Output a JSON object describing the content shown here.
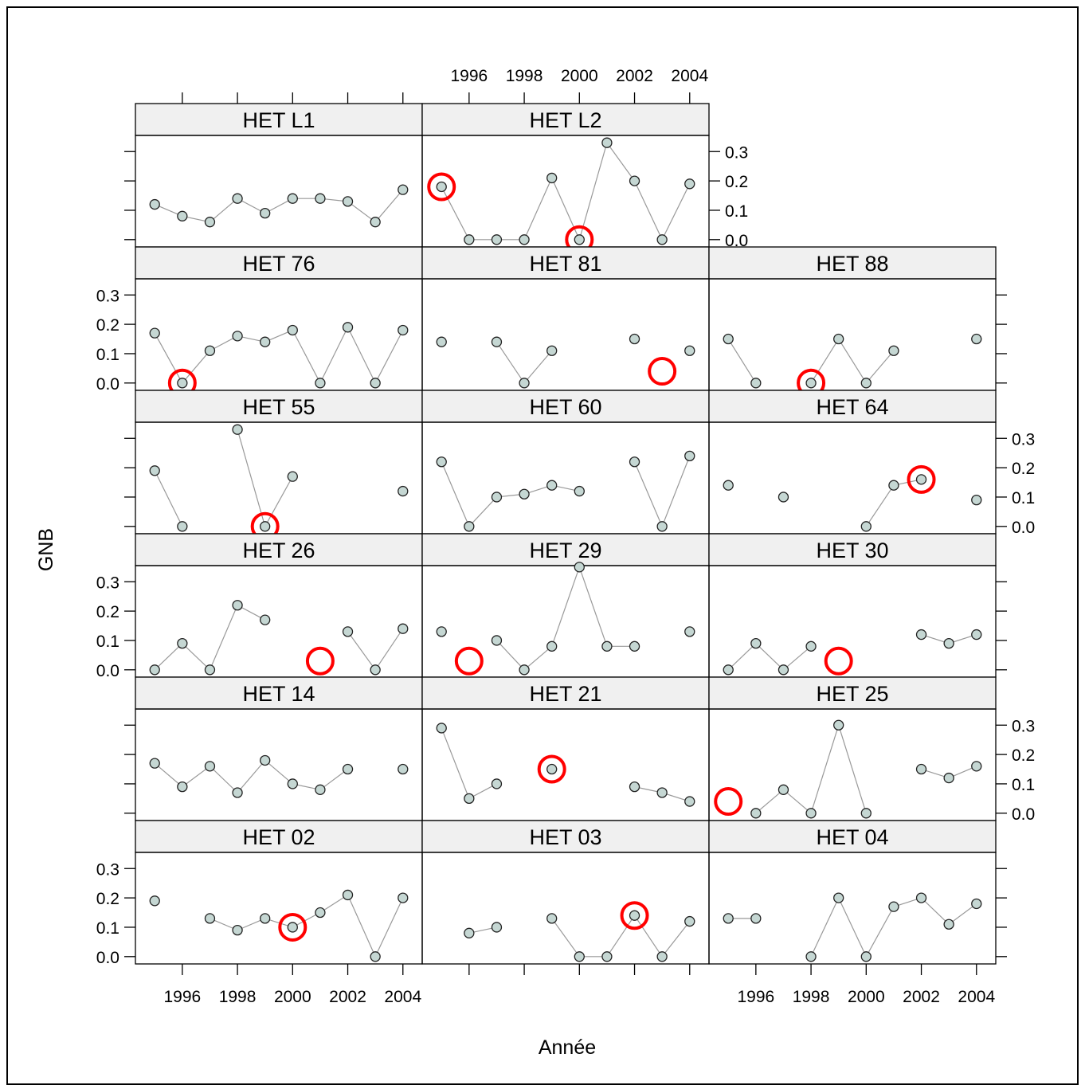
{
  "chart_data": {
    "type": "scatter",
    "xlabel": "Année",
    "ylabel": "GNB",
    "x_ticks": [
      1996,
      1998,
      2000,
      2002,
      2004
    ],
    "y_ticks": [
      "0.0",
      "0.1",
      "0.2",
      "0.3"
    ],
    "xlim": [
      1994.3,
      2004.7
    ],
    "ylim": [
      -0.025,
      0.355
    ],
    "years": [
      1995,
      1996,
      1997,
      1998,
      1999,
      2000,
      2001,
      2002,
      2003,
      2004
    ],
    "marker_fill": "#c5d7d3",
    "line_color": "#999999",
    "highlight_color": "#ff0000",
    "strip_color": "#f0f0f0",
    "panels": [
      {
        "name": "HET L1",
        "row": 0,
        "col": 0,
        "values": [
          0.12,
          0.08,
          0.06,
          0.14,
          0.09,
          0.14,
          0.14,
          0.13,
          0.06,
          0.17
        ],
        "highlights": []
      },
      {
        "name": "HET L2",
        "row": 0,
        "col": 1,
        "values": [
          0.18,
          0.0,
          0.0,
          0.0,
          0.21,
          0.0,
          0.33,
          0.2,
          0.0,
          0.19
        ],
        "highlights": [
          {
            "x": 1995,
            "y": 0.18
          },
          {
            "x": 2000,
            "y": 0.0
          }
        ]
      },
      {
        "name": "HET 76",
        "row": 1,
        "col": 0,
        "values": [
          0.17,
          0.0,
          0.11,
          0.16,
          0.14,
          0.18,
          0.0,
          0.19,
          0.0,
          0.18
        ],
        "highlights": [
          {
            "x": 1996,
            "y": 0.0
          }
        ]
      },
      {
        "name": "HET 81",
        "row": 1,
        "col": 1,
        "values": [
          0.14,
          null,
          0.14,
          0.0,
          0.11,
          null,
          null,
          0.15,
          null,
          0.11
        ],
        "highlights": [
          {
            "x": 2003,
            "y": 0.04
          }
        ]
      },
      {
        "name": "HET 88",
        "row": 1,
        "col": 2,
        "values": [
          0.15,
          0.0,
          null,
          0.0,
          0.15,
          0.0,
          0.11,
          null,
          null,
          0.15
        ],
        "highlights": [
          {
            "x": 1998,
            "y": 0.0
          }
        ]
      },
      {
        "name": "HET 55",
        "row": 2,
        "col": 0,
        "values": [
          0.19,
          0.0,
          null,
          0.33,
          0.0,
          0.17,
          null,
          null,
          null,
          0.12
        ],
        "highlights": [
          {
            "x": 1999,
            "y": 0.0
          }
        ]
      },
      {
        "name": "HET 60",
        "row": 2,
        "col": 1,
        "values": [
          0.22,
          0.0,
          0.1,
          0.11,
          0.14,
          0.12,
          null,
          0.22,
          0.0,
          0.24
        ],
        "highlights": []
      },
      {
        "name": "HET 64",
        "row": 2,
        "col": 2,
        "values": [
          0.14,
          null,
          0.1,
          null,
          null,
          0.0,
          0.14,
          0.16,
          null,
          0.09
        ],
        "highlights": [
          {
            "x": 2002,
            "y": 0.16
          }
        ]
      },
      {
        "name": "HET 26",
        "row": 3,
        "col": 0,
        "values": [
          0.0,
          0.09,
          0.0,
          0.22,
          0.17,
          null,
          null,
          0.13,
          0.0,
          0.14
        ],
        "highlights": [
          {
            "x": 2001,
            "y": 0.03
          }
        ]
      },
      {
        "name": "HET 29",
        "row": 3,
        "col": 1,
        "values": [
          0.13,
          null,
          0.1,
          0.0,
          0.08,
          0.35,
          0.08,
          0.08,
          null,
          0.13
        ],
        "highlights": [
          {
            "x": 1996,
            "y": 0.03
          }
        ]
      },
      {
        "name": "HET 30",
        "row": 3,
        "col": 2,
        "values": [
          0.0,
          0.09,
          0.0,
          0.08,
          null,
          null,
          null,
          0.12,
          0.09,
          0.12
        ],
        "highlights": [
          {
            "x": 1999,
            "y": 0.03
          }
        ]
      },
      {
        "name": "HET 14",
        "row": 4,
        "col": 0,
        "values": [
          0.17,
          0.09,
          0.16,
          0.07,
          0.18,
          0.1,
          0.08,
          0.15,
          null,
          0.15
        ],
        "highlights": []
      },
      {
        "name": "HET 21",
        "row": 4,
        "col": 1,
        "values": [
          0.29,
          0.05,
          0.1,
          null,
          0.15,
          null,
          null,
          0.09,
          0.07,
          0.04
        ],
        "highlights": [
          {
            "x": 1999,
            "y": 0.15
          }
        ]
      },
      {
        "name": "HET 25",
        "row": 4,
        "col": 2,
        "values": [
          null,
          0.0,
          0.08,
          0.0,
          0.3,
          0.0,
          null,
          0.15,
          0.12,
          0.16
        ],
        "highlights": [
          {
            "x": 1995,
            "y": 0.04
          }
        ]
      },
      {
        "name": "HET 02",
        "row": 5,
        "col": 0,
        "values": [
          0.19,
          null,
          0.13,
          0.09,
          0.13,
          0.1,
          0.15,
          0.21,
          0.0,
          0.2
        ],
        "highlights": [
          {
            "x": 2000,
            "y": 0.1
          }
        ]
      },
      {
        "name": "HET 03",
        "row": 5,
        "col": 1,
        "values": [
          null,
          0.08,
          0.1,
          null,
          0.13,
          0.0,
          0.0,
          0.14,
          0.0,
          0.12
        ],
        "highlights": [
          {
            "x": 2002,
            "y": 0.14
          }
        ]
      },
      {
        "name": "HET 04",
        "row": 5,
        "col": 2,
        "values": [
          0.13,
          0.13,
          null,
          0.0,
          0.2,
          0.0,
          0.17,
          0.2,
          0.11,
          0.18
        ],
        "highlights": []
      }
    ]
  }
}
